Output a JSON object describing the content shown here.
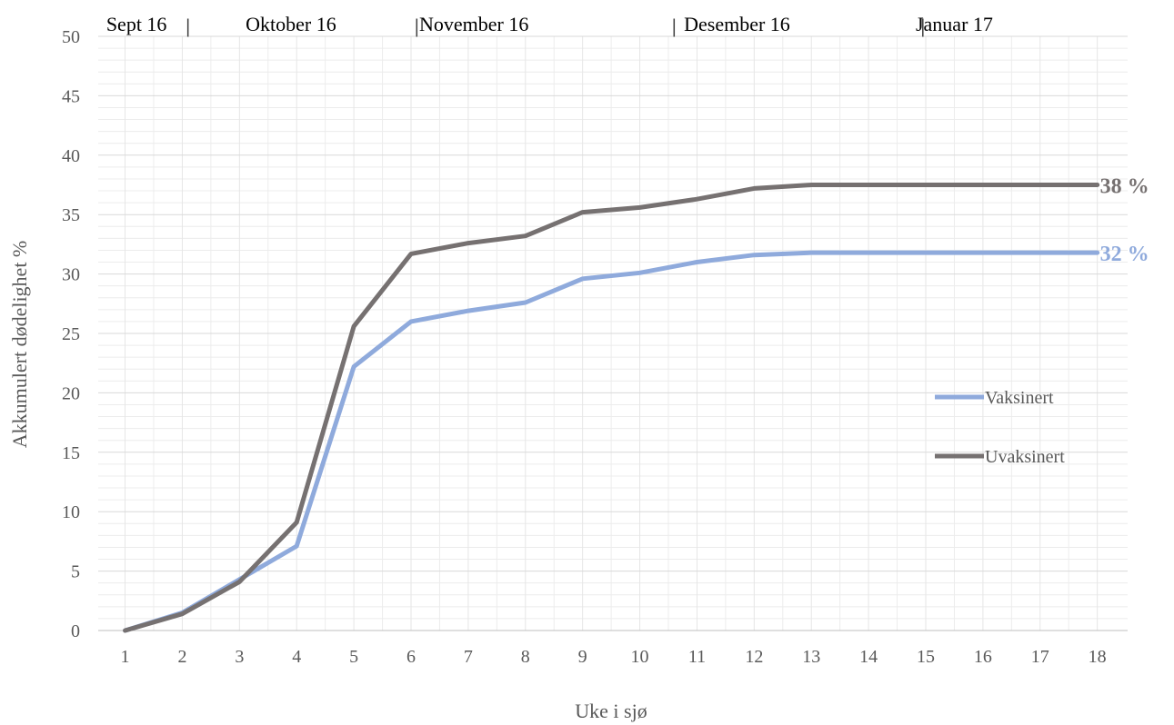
{
  "chart_data": {
    "type": "line",
    "xlabel": "Uke i sjø",
    "ylabel": "Akkumulert dødelighet %",
    "x": [
      1,
      2,
      3,
      4,
      5,
      6,
      7,
      8,
      9,
      10,
      11,
      12,
      13,
      14,
      15,
      16,
      17,
      18
    ],
    "xlim": [
      0.53,
      18.53
    ],
    "ylim": [
      0,
      50
    ],
    "ytick_step": 5,
    "grid": true,
    "legend_position": "right",
    "series": [
      {
        "name": "Vaksinert",
        "color": "#8FAADC",
        "values": [
          0,
          1.5,
          4.3,
          7.1,
          22.2,
          26.0,
          26.9,
          27.6,
          29.6,
          30.1,
          31.0,
          31.6,
          31.8,
          31.8,
          31.8,
          31.8,
          31.8,
          31.8
        ],
        "end_label": "32 %"
      },
      {
        "name": "Uvaksinert",
        "color": "#767171",
        "values": [
          0,
          1.4,
          4.1,
          9.1,
          25.6,
          31.7,
          32.6,
          33.2,
          35.2,
          35.6,
          36.3,
          37.2,
          37.5,
          37.5,
          37.5,
          37.5,
          37.5,
          37.5
        ],
        "end_label": "38 %"
      }
    ],
    "period_labels": [
      {
        "label": "Sept 16",
        "x": 1.2
      },
      {
        "label": "Oktober 16",
        "x": 3.9
      },
      {
        "label": "November 16",
        "x": 7.1
      },
      {
        "label": "Desember 16",
        "x": 11.7
      },
      {
        "label": "Januar 17",
        "x": 15.5
      }
    ],
    "period_separators": [
      {
        "label": "|",
        "x": 2.1
      },
      {
        "label": "|",
        "x": 6.1
      },
      {
        "label": "|",
        "x": 10.6
      },
      {
        "label": "|",
        "x": 14.95
      }
    ]
  }
}
